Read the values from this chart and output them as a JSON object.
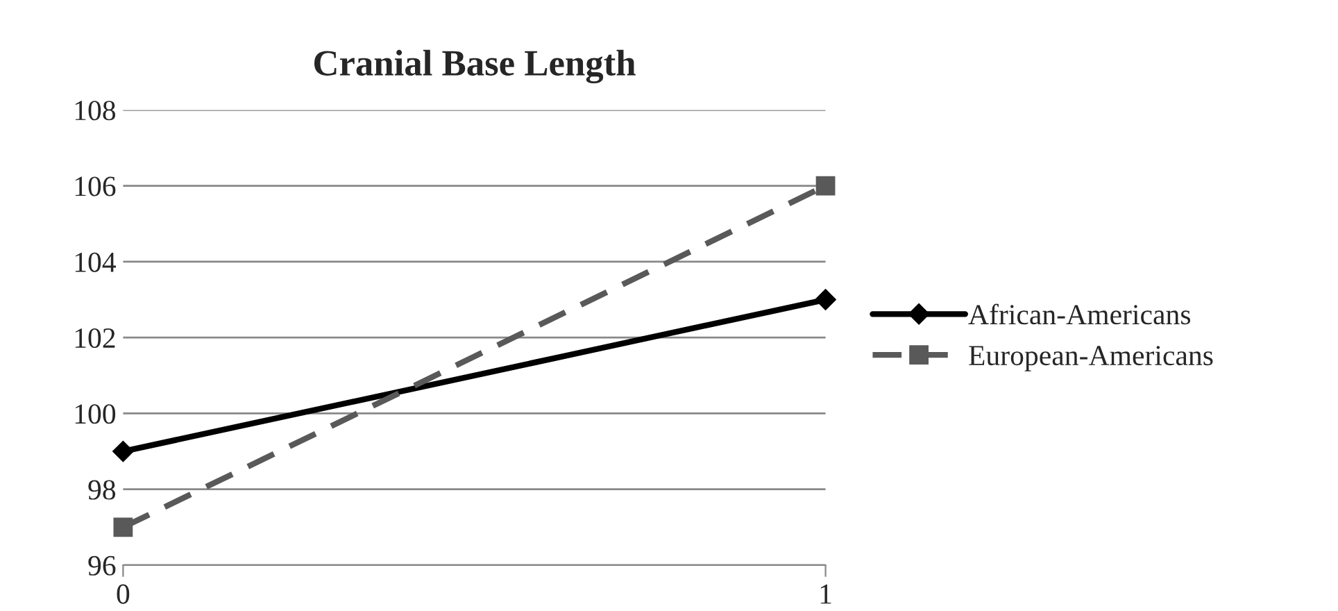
{
  "chart_data": {
    "type": "line",
    "title": "Cranial Base Length",
    "x": [
      0,
      1
    ],
    "series": [
      {
        "name": "African-Americans",
        "color": "#000000",
        "values": [
          99,
          103
        ],
        "marker": "diamond",
        "line_style": "solid"
      },
      {
        "name": "European-Americans",
        "color": "#595959",
        "values": [
          97,
          106
        ],
        "marker": "square",
        "line_style": "dashed"
      }
    ],
    "xlim": [
      0,
      1
    ],
    "xticks": [
      0,
      1
    ],
    "ylim": [
      96,
      108
    ],
    "yticks": [
      96,
      98,
      100,
      102,
      104,
      106,
      108
    ],
    "grid": "y",
    "legend": "right"
  }
}
